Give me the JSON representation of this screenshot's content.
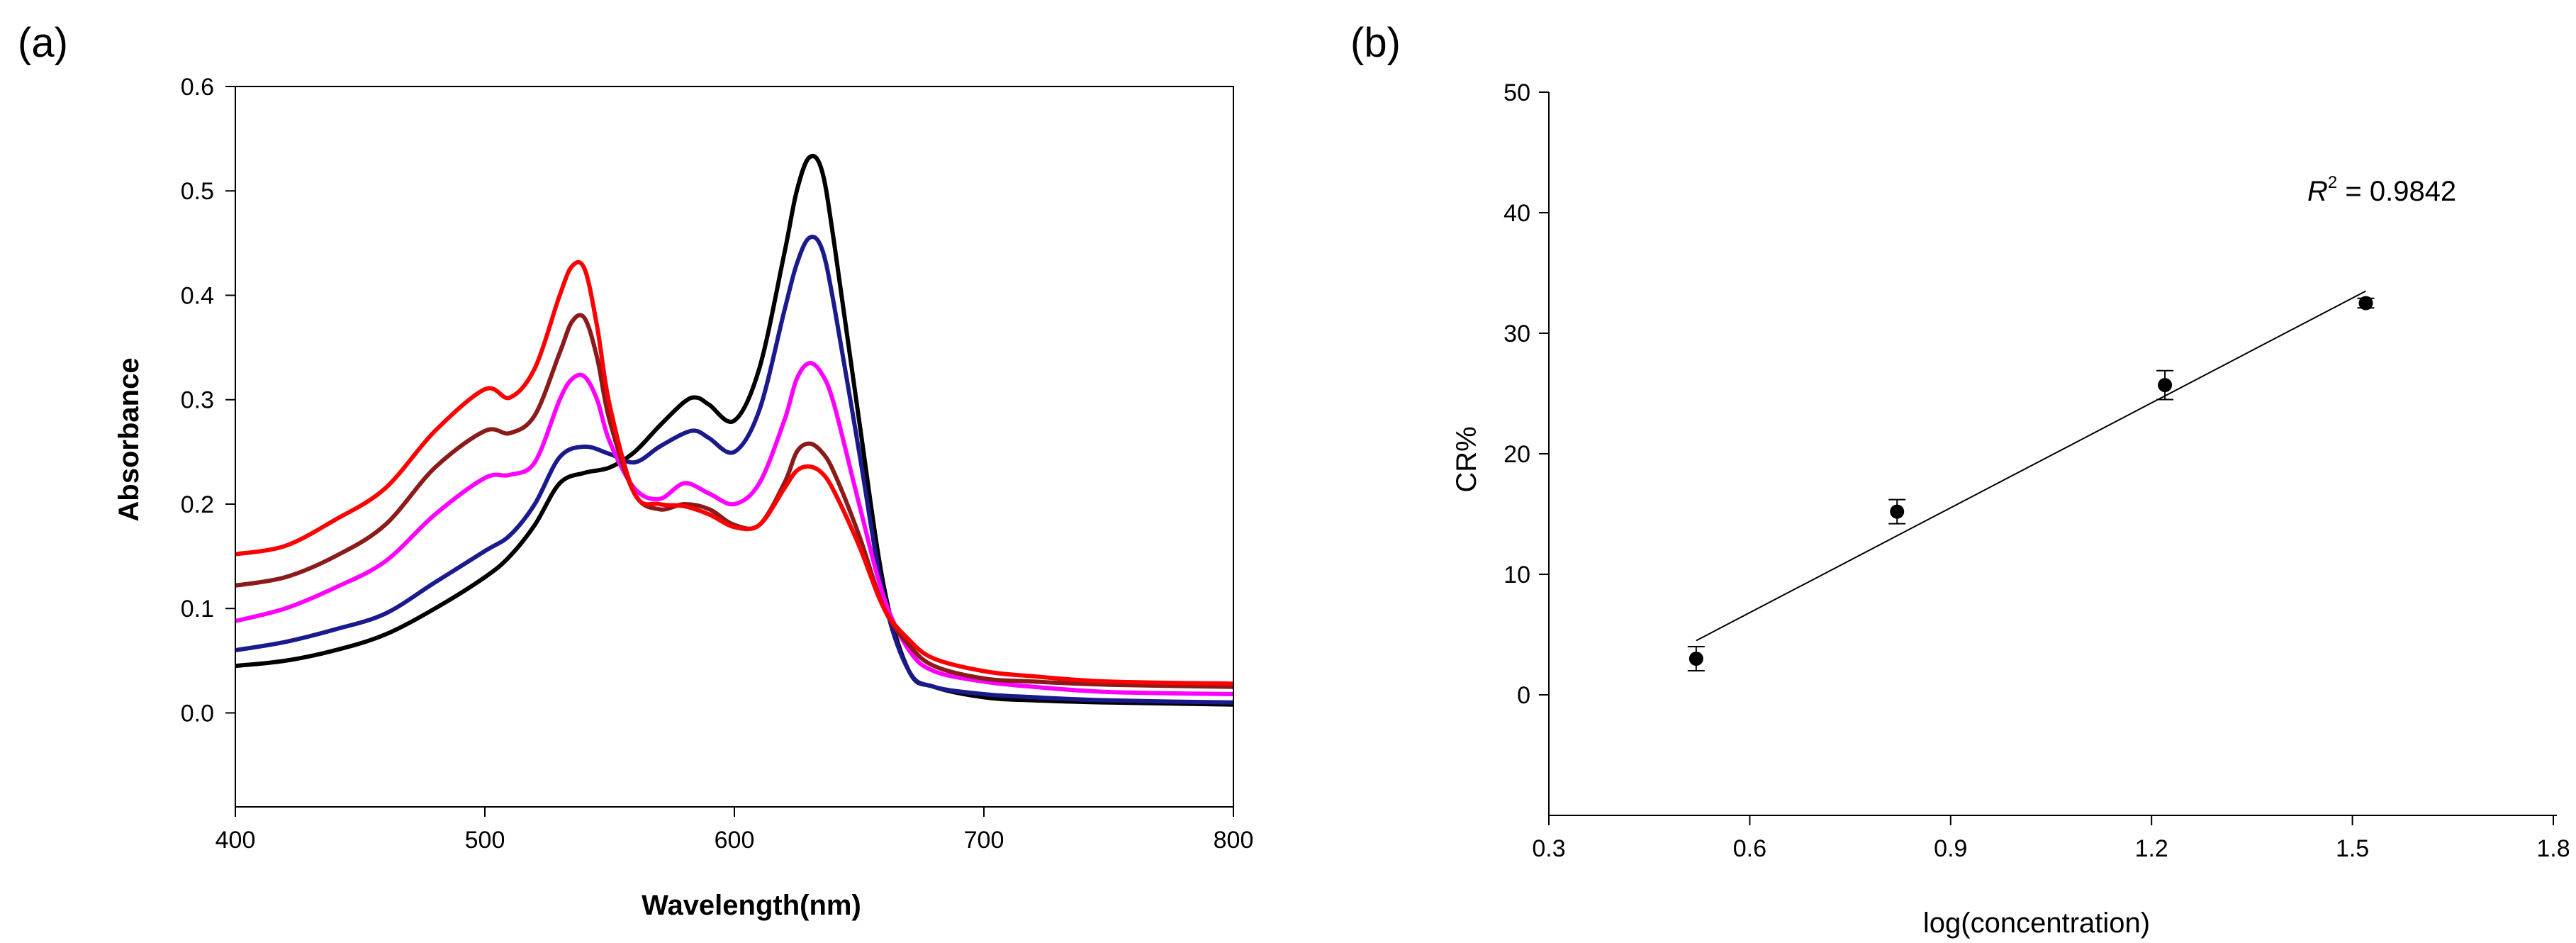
{
  "chart_data": [
    {
      "panel_label": "(a)",
      "type": "line",
      "title": "",
      "xlabel": "Wavelength(nm)",
      "ylabel": "Absorbance",
      "xlim": [
        400,
        800
      ],
      "ylim": [
        -0.09,
        0.6
      ],
      "xticks": [
        "400",
        "500",
        "600",
        "700",
        "800"
      ],
      "yticks": [
        "0.0",
        "0.1",
        "0.2",
        "0.3",
        "0.4",
        "0.5",
        "0.6"
      ],
      "grid": false,
      "series": [
        {
          "name": "spectrum-black",
          "color": "#000000",
          "x": [
            400,
            420,
            440,
            460,
            480,
            500,
            510,
            520,
            530,
            540,
            550,
            560,
            570,
            580,
            585,
            590,
            600,
            610,
            620,
            625,
            630,
            635,
            640,
            650,
            660,
            670,
            680,
            700,
            720,
            750,
            800
          ],
          "y": [
            0.045,
            0.05,
            0.06,
            0.075,
            0.1,
            0.13,
            0.15,
            0.18,
            0.22,
            0.23,
            0.235,
            0.25,
            0.275,
            0.298,
            0.302,
            0.295,
            0.28,
            0.33,
            0.44,
            0.5,
            0.532,
            0.52,
            0.45,
            0.28,
            0.12,
            0.04,
            0.025,
            0.015,
            0.012,
            0.01,
            0.008
          ]
        },
        {
          "name": "spectrum-blue",
          "color": "#1a1a8c",
          "x": [
            400,
            420,
            440,
            460,
            480,
            500,
            510,
            520,
            530,
            540,
            550,
            560,
            570,
            580,
            585,
            590,
            600,
            610,
            620,
            625,
            630,
            635,
            640,
            650,
            660,
            670,
            680,
            700,
            720,
            750,
            800
          ],
          "y": [
            0.06,
            0.068,
            0.08,
            0.095,
            0.125,
            0.155,
            0.17,
            0.2,
            0.245,
            0.255,
            0.248,
            0.24,
            0.255,
            0.268,
            0.27,
            0.263,
            0.25,
            0.29,
            0.385,
            0.43,
            0.455,
            0.445,
            0.39,
            0.25,
            0.11,
            0.04,
            0.025,
            0.018,
            0.015,
            0.012,
            0.01
          ]
        },
        {
          "name": "spectrum-magenta",
          "color": "#ff00ff",
          "x": [
            400,
            420,
            440,
            460,
            480,
            500,
            510,
            520,
            530,
            535,
            540,
            545,
            550,
            560,
            570,
            580,
            590,
            600,
            610,
            620,
            625,
            630,
            635,
            640,
            650,
            660,
            670,
            680,
            700,
            720,
            750,
            800
          ],
          "y": [
            0.088,
            0.1,
            0.12,
            0.145,
            0.19,
            0.225,
            0.228,
            0.24,
            0.3,
            0.32,
            0.322,
            0.3,
            0.26,
            0.215,
            0.205,
            0.22,
            0.21,
            0.2,
            0.22,
            0.28,
            0.32,
            0.335,
            0.325,
            0.295,
            0.2,
            0.11,
            0.06,
            0.04,
            0.03,
            0.025,
            0.02,
            0.018
          ]
        },
        {
          "name": "spectrum-darkred",
          "color": "#8b1a1a",
          "x": [
            400,
            420,
            440,
            460,
            480,
            500,
            510,
            520,
            530,
            535,
            540,
            545,
            550,
            560,
            570,
            580,
            590,
            600,
            610,
            620,
            625,
            630,
            635,
            640,
            650,
            660,
            670,
            680,
            700,
            720,
            750,
            800
          ],
          "y": [
            0.122,
            0.13,
            0.15,
            0.18,
            0.235,
            0.27,
            0.268,
            0.285,
            0.345,
            0.375,
            0.378,
            0.34,
            0.28,
            0.21,
            0.195,
            0.2,
            0.195,
            0.18,
            0.18,
            0.22,
            0.25,
            0.258,
            0.25,
            0.23,
            0.17,
            0.1,
            0.065,
            0.045,
            0.033,
            0.03,
            0.027,
            0.025
          ]
        },
        {
          "name": "spectrum-red",
          "color": "#ff0000",
          "x": [
            400,
            420,
            440,
            460,
            480,
            500,
            510,
            520,
            530,
            535,
            540,
            545,
            550,
            560,
            570,
            580,
            590,
            600,
            610,
            620,
            625,
            630,
            635,
            640,
            650,
            660,
            670,
            680,
            700,
            720,
            750,
            800
          ],
          "y": [
            0.152,
            0.16,
            0.185,
            0.215,
            0.27,
            0.31,
            0.302,
            0.33,
            0.4,
            0.428,
            0.425,
            0.37,
            0.295,
            0.21,
            0.2,
            0.198,
            0.19,
            0.178,
            0.18,
            0.215,
            0.232,
            0.236,
            0.23,
            0.212,
            0.16,
            0.1,
            0.07,
            0.052,
            0.04,
            0.035,
            0.03,
            0.028
          ]
        }
      ]
    },
    {
      "panel_label": "(b)",
      "type": "scatter",
      "title": "",
      "xlabel": "log(concentration)",
      "ylabel": "CR%",
      "xlim": [
        0.3,
        1.8
      ],
      "ylim": [
        -10,
        50
      ],
      "xticks": [
        "0.3",
        "0.6",
        "0.9",
        "1.2",
        "1.5",
        "1.8"
      ],
      "yticks": [
        "0",
        "10",
        "20",
        "30",
        "40",
        "50"
      ],
      "grid": false,
      "annotation": {
        "r_symbol": "R",
        "r_sup": "2",
        "r_rest": " = 0.9842"
      },
      "points": [
        {
          "x": 0.52,
          "y": 3.0,
          "err": 1.0
        },
        {
          "x": 0.82,
          "y": 15.2,
          "err": 1.0
        },
        {
          "x": 1.22,
          "y": 25.7,
          "err": 1.2
        },
        {
          "x": 1.52,
          "y": 32.5,
          "err": 0.4
        }
      ],
      "fit_line": {
        "x": [
          0.52,
          1.52
        ],
        "y": [
          4.5,
          33.5
        ]
      }
    }
  ]
}
